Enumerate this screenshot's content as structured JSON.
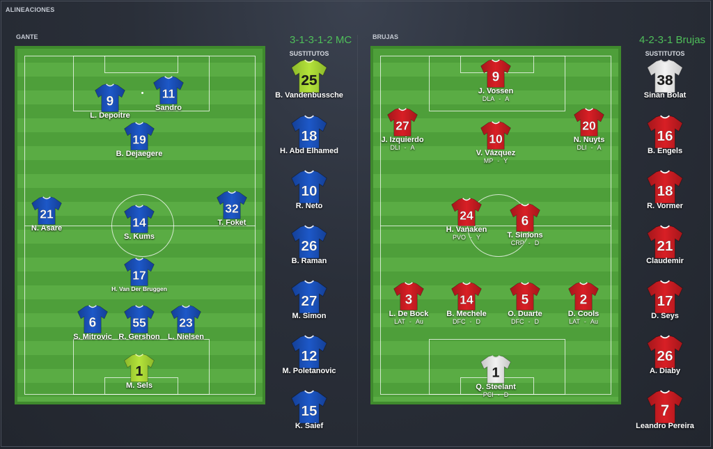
{
  "window": {
    "title": "ALINEACIONES"
  },
  "colors": {
    "accent_green": "#4fbf5a",
    "blue_kit": "#1d58c8",
    "red_kit": "#d81f25",
    "gk_yellow": "#b5e33b",
    "gk_white": "#f2f2f2"
  },
  "home": {
    "team_label": "GANTE",
    "formation": "3-1-3-1-2 MC",
    "subs_label": "SUSTITUTOS",
    "players": [
      {
        "number": "9",
        "name": "L. Depoitre",
        "kit": "blue"
      },
      {
        "number": "11",
        "name": "Sandro",
        "kit": "blue"
      },
      {
        "number": "19",
        "name": "B. Dejaegere",
        "kit": "blue"
      },
      {
        "number": "21",
        "name": "N. Asare",
        "kit": "blue"
      },
      {
        "number": "14",
        "name": "S. Kums",
        "kit": "blue"
      },
      {
        "number": "32",
        "name": "T. Foket",
        "kit": "blue"
      },
      {
        "number": "17",
        "name": "H. Van Der Bruggen",
        "kit": "blue"
      },
      {
        "number": "6",
        "name": "S. Mitrovic",
        "kit": "blue"
      },
      {
        "number": "55",
        "name": "R. Gershon",
        "kit": "blue"
      },
      {
        "number": "23",
        "name": "L. Nielsen",
        "kit": "blue"
      },
      {
        "number": "1",
        "name": "M. Sels",
        "kit": "yellow"
      }
    ],
    "subs": [
      {
        "number": "25",
        "name": "B. Vandenbussche",
        "kit": "yellow"
      },
      {
        "number": "18",
        "name": "H. Abd Elhamed",
        "kit": "blue"
      },
      {
        "number": "10",
        "name": "R. Neto",
        "kit": "blue"
      },
      {
        "number": "26",
        "name": "B. Raman",
        "kit": "blue"
      },
      {
        "number": "27",
        "name": "M. Simon",
        "kit": "blue"
      },
      {
        "number": "12",
        "name": "M. Poletanovic",
        "kit": "blue"
      },
      {
        "number": "15",
        "name": "K. Saief",
        "kit": "blue"
      }
    ]
  },
  "away": {
    "team_label": "BRUJAS",
    "formation": "4-2-3-1 Brujas",
    "subs_label": "SUSTITUTOS",
    "players": [
      {
        "number": "9",
        "name": "J. Vossen",
        "position": "DLA",
        "duty": "A",
        "kit": "red"
      },
      {
        "number": "27",
        "name": "J. Izquierdo",
        "position": "DLI",
        "duty": "A",
        "kit": "red"
      },
      {
        "number": "10",
        "name": "V. Vázquez",
        "position": "MP",
        "duty": "Y",
        "kit": "red"
      },
      {
        "number": "20",
        "name": "N. Nuyts",
        "position": "DLI",
        "duty": "A",
        "kit": "red"
      },
      {
        "number": "24",
        "name": "H. Vanaken",
        "position": "PVO",
        "duty": "Y",
        "kit": "red"
      },
      {
        "number": "6",
        "name": "T. Simons",
        "position": "CRP",
        "duty": "D",
        "kit": "red"
      },
      {
        "number": "3",
        "name": "L. De Bock",
        "position": "LAT",
        "duty": "Au",
        "kit": "red"
      },
      {
        "number": "14",
        "name": "B. Mechele",
        "position": "DFC",
        "duty": "D",
        "kit": "red"
      },
      {
        "number": "5",
        "name": "O. Duarte",
        "position": "DFC",
        "duty": "D",
        "kit": "red"
      },
      {
        "number": "2",
        "name": "D. Cools",
        "position": "LAT",
        "duty": "Au",
        "kit": "red"
      },
      {
        "number": "1",
        "name": "Q. Steelant",
        "position": "PCI",
        "duty": "D",
        "kit": "white"
      }
    ],
    "subs": [
      {
        "number": "38",
        "name": "Sinan Bolat",
        "kit": "white"
      },
      {
        "number": "16",
        "name": "B. Engels",
        "kit": "red"
      },
      {
        "number": "18",
        "name": "R. Vormer",
        "kit": "red"
      },
      {
        "number": "21",
        "name": "Claudemir",
        "kit": "red"
      },
      {
        "number": "17",
        "name": "D. Seys",
        "kit": "red"
      },
      {
        "number": "26",
        "name": "A. Diaby",
        "kit": "red"
      },
      {
        "number": "7",
        "name": "Leandro Pereira",
        "kit": "red"
      }
    ]
  }
}
